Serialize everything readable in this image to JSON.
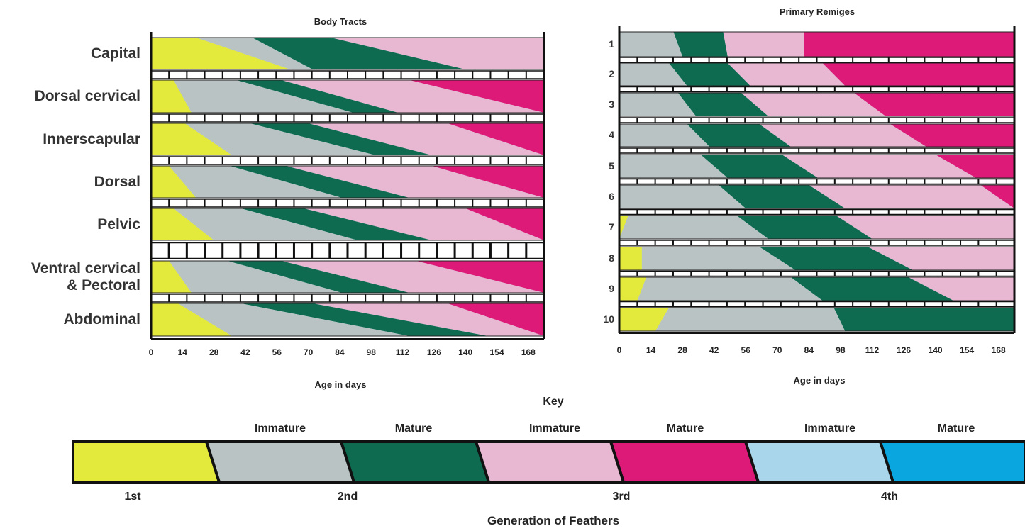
{
  "chart_data": [
    {
      "type": "timeline-band",
      "title": "Body Tracts",
      "xlabel": "Age in days",
      "xlim": [
        0,
        175
      ],
      "xticks": [
        0,
        14,
        28,
        42,
        56,
        70,
        84,
        98,
        112,
        126,
        140,
        154,
        168
      ],
      "rows": [
        {
          "name": "Capital",
          "b": [
            [
              0,
              20,
              62
            ],
            [
              20,
              45,
              72
            ],
            [
              45,
              80,
              140
            ],
            [
              80,
              175,
              175
            ],
            [
              175,
              175,
              175
            ]
          ]
        },
        {
          "name": "Dorsal cervical",
          "b": [
            [
              0,
              10,
              18
            ],
            [
              10,
              38,
              90
            ],
            [
              38,
              58,
              110
            ],
            [
              58,
              115,
              175
            ],
            [
              115,
              175,
              175
            ]
          ]
        },
        {
          "name": "Innerscapular",
          "b": [
            [
              0,
              15,
              36
            ],
            [
              15,
              44,
              100
            ],
            [
              44,
              70,
              125
            ],
            [
              70,
              132,
              175
            ],
            [
              132,
              175,
              175
            ]
          ]
        },
        {
          "name": "Dorsal",
          "b": [
            [
              0,
              8,
              20
            ],
            [
              8,
              35,
              85
            ],
            [
              35,
              60,
              115
            ],
            [
              60,
              125,
              175
            ],
            [
              125,
              175,
              175
            ]
          ]
        },
        {
          "name": "Pelvic",
          "b": [
            [
              0,
              10,
              28
            ],
            [
              10,
              40,
              92
            ],
            [
              40,
              68,
              125
            ],
            [
              68,
              140,
              175
            ],
            [
              140,
              175,
              175
            ]
          ]
        },
        {
          "name": "Ventral cervical\n& Pectoral",
          "b": [
            [
              0,
              8,
              18
            ],
            [
              8,
              34,
              85
            ],
            [
              34,
              58,
              115
            ],
            [
              58,
              118,
              175
            ],
            [
              118,
              175,
              175
            ]
          ]
        },
        {
          "name": "Abdominal",
          "b": [
            [
              0,
              12,
              36
            ],
            [
              12,
              40,
              115
            ],
            [
              40,
              72,
              150
            ],
            [
              72,
              132,
              175
            ],
            [
              132,
              175,
              175
            ]
          ]
        }
      ]
    },
    {
      "type": "timeline-band",
      "title": "Primary Remiges",
      "xlabel": "Age in days",
      "xlim": [
        0,
        175
      ],
      "xticks": [
        0,
        14,
        28,
        42,
        56,
        70,
        84,
        98,
        112,
        126,
        140,
        154,
        168
      ],
      "rows": [
        {
          "name": "1",
          "b": [
            [
              0,
              0,
              0
            ],
            [
              0,
              24,
              28
            ],
            [
              24,
              46,
              48
            ],
            [
              46,
              82,
              82
            ],
            [
              82,
              175,
              175
            ]
          ]
        },
        {
          "name": "2",
          "b": [
            [
              0,
              0,
              0
            ],
            [
              0,
              22,
              30
            ],
            [
              22,
              48,
              58
            ],
            [
              48,
              90,
              100
            ],
            [
              90,
              175,
              175
            ]
          ]
        },
        {
          "name": "3",
          "b": [
            [
              0,
              0,
              0
            ],
            [
              0,
              26,
              34
            ],
            [
              26,
              54,
              66
            ],
            [
              54,
              104,
              118
            ],
            [
              104,
              175,
              175
            ]
          ]
        },
        {
          "name": "4",
          "b": [
            [
              0,
              0,
              0
            ],
            [
              0,
              30,
              40
            ],
            [
              30,
              62,
              76
            ],
            [
              62,
              120,
              136
            ],
            [
              120,
              175,
              175
            ]
          ]
        },
        {
          "name": "5",
          "b": [
            [
              0,
              0,
              0
            ],
            [
              0,
              36,
              48
            ],
            [
              36,
              72,
              88
            ],
            [
              72,
              140,
              158
            ],
            [
              140,
              175,
              175
            ]
          ]
        },
        {
          "name": "6",
          "b": [
            [
              0,
              0,
              0
            ],
            [
              0,
              44,
              56
            ],
            [
              44,
              84,
              100
            ],
            [
              84,
              160,
              175
            ],
            [
              160,
              175,
              175
            ]
          ]
        },
        {
          "name": "7",
          "b": [
            [
              0,
              4,
              0
            ],
            [
              4,
              52,
              66
            ],
            [
              52,
              96,
              112
            ],
            [
              96,
              175,
              175
            ],
            [
              175,
              175,
              175
            ]
          ]
        },
        {
          "name": "8",
          "b": [
            [
              0,
              10,
              10
            ],
            [
              10,
              62,
              78
            ],
            [
              62,
              110,
              130
            ],
            [
              110,
              175,
              175
            ],
            [
              175,
              175,
              175
            ]
          ]
        },
        {
          "name": "9",
          "b": [
            [
              0,
              12,
              8
            ],
            [
              8,
              76,
              90
            ],
            [
              76,
              128,
              148
            ],
            [
              128,
              175,
              175
            ],
            [
              175,
              175,
              175
            ]
          ]
        },
        {
          "name": "10",
          "b": [
            [
              0,
              22,
              16
            ],
            [
              16,
              95,
              100
            ],
            [
              95,
              175,
              175
            ],
            [
              175,
              175,
              175
            ],
            [
              175,
              175,
              175
            ]
          ]
        }
      ]
    }
  ],
  "key": {
    "title": "Key",
    "stage_labels": [
      "Immature",
      "Mature",
      "Immature",
      "Mature",
      "Immature",
      "Mature"
    ],
    "generation_labels": [
      "1st",
      "2nd",
      "3rd",
      "4th"
    ],
    "footer": "Generation of Feathers",
    "colors": {
      "gen1": "#e4ea3c",
      "gen2_immature": "#b9c3c4",
      "gen2_mature": "#0e6b50",
      "gen3_immature": "#e8b8d2",
      "gen3_mature": "#de1a78",
      "gen4_immature": "#a9d6ea",
      "gen4_mature": "#0aa6e0"
    }
  }
}
